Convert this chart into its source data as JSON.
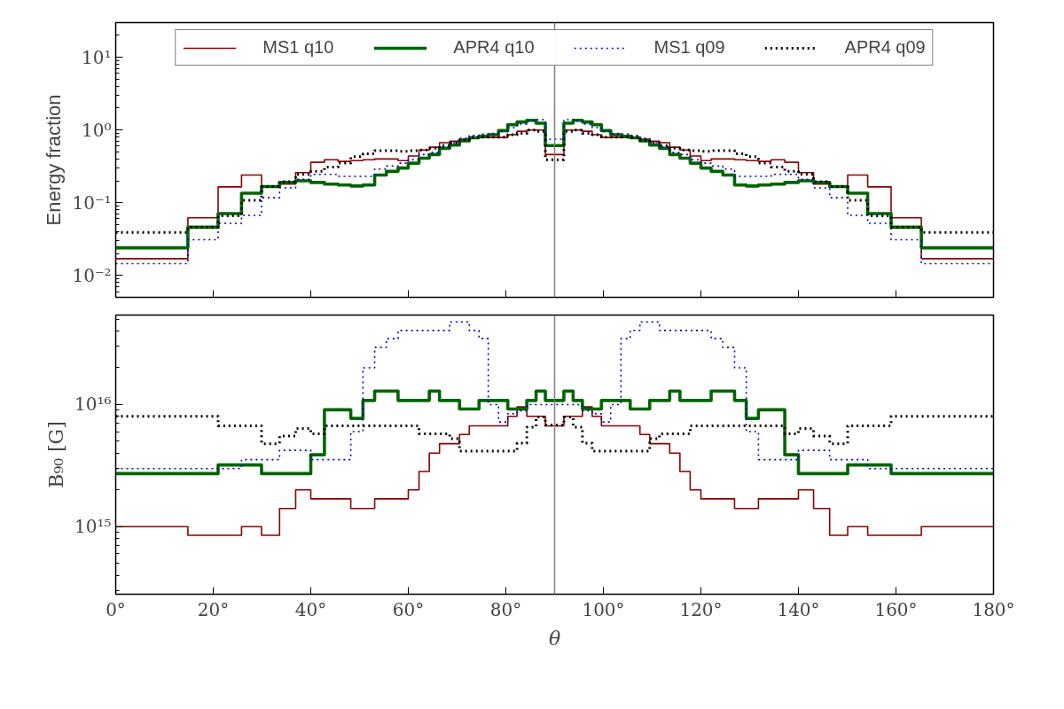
{
  "chart_data": [
    {
      "type": "step",
      "ylabel": "Energy fraction",
      "log": true,
      "legend": "top",
      "tick_labels": "y",
      "x": [
        0,
        14.8,
        21.0,
        25.8,
        29.9,
        33.6,
        36.9,
        40.0,
        42.8,
        45.6,
        48.2,
        50.7,
        53.1,
        55.5,
        57.9,
        60.0,
        62.2,
        64.3,
        66.4,
        68.5,
        70.5,
        72.5,
        74.5,
        76.4,
        78.5,
        80.4,
        82.3,
        84.3,
        86.2,
        88.1,
        90,
        91.9,
        93.8,
        95.7,
        97.7,
        99.6,
        101.5,
        103.6,
        105.5,
        107.5,
        109.5,
        111.5,
        113.6,
        115.7,
        117.8,
        120.0,
        122.1,
        124.5,
        126.9,
        129.3,
        131.8,
        134.4,
        137.2,
        140.0,
        143.1,
        146.4,
        150.1,
        154.2,
        159.0,
        165.2,
        180
      ],
      "xlim": [
        0,
        180
      ],
      "xticks": [
        0,
        20,
        40,
        60,
        80,
        100,
        120,
        140,
        160,
        180
      ],
      "ylim": [
        0.005,
        30
      ],
      "yticks": [
        {
          "value": 0.01,
          "label": "10⁻²"
        },
        {
          "value": 0.1,
          "label": "10⁻¹"
        },
        {
          "value": 1,
          "label": "10⁰"
        },
        {
          "value": 10,
          "label": "10¹"
        }
      ],
      "ref_lines": [
        {
          "axis": "x",
          "value": 90,
          "color": "#808080"
        }
      ],
      "series": [
        {
          "name": "MS1 q10",
          "color": "#8b0000",
          "line_style": "solid",
          "values": [
            0.017,
            0.062,
            0.165,
            0.24,
            0.17,
            0.18,
            0.26,
            0.36,
            0.39,
            0.37,
            0.38,
            0.39,
            0.4,
            0.4,
            0.38,
            0.44,
            0.53,
            0.58,
            0.67,
            0.7,
            0.75,
            0.79,
            0.79,
            0.79,
            0.79,
            0.86,
            0.96,
            1.0,
            1.0,
            0.46,
            0.46,
            1.0,
            1.0,
            0.96,
            0.86,
            0.79,
            0.79,
            0.79,
            0.79,
            0.75,
            0.7,
            0.67,
            0.58,
            0.53,
            0.44,
            0.38,
            0.4,
            0.4,
            0.39,
            0.38,
            0.37,
            0.39,
            0.36,
            0.26,
            0.18,
            0.17,
            0.24,
            0.165,
            0.062,
            0.017,
            0.017
          ]
        },
        {
          "name": "APR4 q10",
          "color": "#006400",
          "line_style": "solid",
          "values": [
            0.024,
            0.046,
            0.071,
            0.135,
            0.167,
            0.19,
            0.2,
            0.19,
            0.18,
            0.175,
            0.17,
            0.175,
            0.24,
            0.27,
            0.3,
            0.35,
            0.41,
            0.46,
            0.56,
            0.62,
            0.71,
            0.78,
            0.82,
            0.86,
            0.98,
            1.18,
            1.29,
            1.36,
            1.24,
            0.61,
            0.61,
            1.24,
            1.36,
            1.29,
            1.18,
            0.98,
            0.86,
            0.82,
            0.78,
            0.71,
            0.62,
            0.56,
            0.46,
            0.41,
            0.35,
            0.3,
            0.27,
            0.24,
            0.175,
            0.17,
            0.175,
            0.18,
            0.19,
            0.2,
            0.19,
            0.167,
            0.135,
            0.071,
            0.046,
            0.024,
            0.024
          ]
        },
        {
          "name": "MS1 q09",
          "color": "#0000cc",
          "line_style": "dotted",
          "values": [
            0.0145,
            0.031,
            0.052,
            0.067,
            0.117,
            0.16,
            0.21,
            0.245,
            0.245,
            0.23,
            0.23,
            0.23,
            0.29,
            0.32,
            0.35,
            0.39,
            0.46,
            0.49,
            0.58,
            0.67,
            0.77,
            0.84,
            0.88,
            0.9,
            0.95,
            1.08,
            1.21,
            1.33,
            1.39,
            0.75,
            0.75,
            1.39,
            1.33,
            1.21,
            1.08,
            0.95,
            0.9,
            0.88,
            0.84,
            0.77,
            0.67,
            0.58,
            0.49,
            0.46,
            0.39,
            0.35,
            0.32,
            0.29,
            0.23,
            0.23,
            0.23,
            0.245,
            0.245,
            0.21,
            0.16,
            0.117,
            0.067,
            0.052,
            0.031,
            0.0145,
            0.0145
          ]
        },
        {
          "name": "APR4 q09",
          "color": "#000000",
          "line_style": "dotted",
          "values": [
            0.039,
            0.046,
            0.066,
            0.108,
            0.167,
            0.195,
            0.245,
            0.27,
            0.31,
            0.35,
            0.43,
            0.47,
            0.52,
            0.52,
            0.51,
            0.52,
            0.53,
            0.56,
            0.61,
            0.67,
            0.73,
            0.79,
            0.8,
            0.8,
            0.8,
            0.86,
            0.9,
            1.0,
            0.96,
            0.39,
            0.39,
            0.96,
            1.0,
            0.9,
            0.86,
            0.8,
            0.8,
            0.8,
            0.79,
            0.73,
            0.67,
            0.61,
            0.56,
            0.53,
            0.52,
            0.51,
            0.52,
            0.52,
            0.47,
            0.43,
            0.35,
            0.31,
            0.27,
            0.245,
            0.195,
            0.167,
            0.108,
            0.066,
            0.046,
            0.039,
            0.039
          ]
        }
      ]
    },
    {
      "type": "step",
      "xlabel": "θ",
      "ylabel": "B₉₀ [G]",
      "log": true,
      "x": [
        0,
        14.8,
        21.0,
        25.8,
        29.9,
        33.6,
        36.9,
        40.0,
        42.8,
        45.6,
        48.2,
        50.7,
        53.1,
        55.5,
        57.9,
        60.0,
        62.2,
        64.3,
        66.4,
        68.5,
        70.5,
        72.5,
        74.5,
        76.4,
        78.5,
        80.4,
        82.3,
        84.3,
        86.2,
        88.1,
        90,
        91.9,
        93.8,
        95.7,
        97.7,
        99.6,
        101.5,
        103.6,
        105.5,
        107.5,
        109.5,
        111.5,
        113.6,
        115.7,
        117.8,
        120.0,
        122.1,
        124.5,
        126.9,
        129.3,
        131.8,
        134.4,
        137.2,
        140.0,
        143.1,
        146.4,
        150.1,
        154.2,
        159.0,
        165.2,
        180
      ],
      "xlim": [
        0,
        180
      ],
      "xticks": [
        {
          "value": 0,
          "label": "0°"
        },
        {
          "value": 20,
          "label": "20°"
        },
        {
          "value": 40,
          "label": "40°"
        },
        {
          "value": 60,
          "label": "60°"
        },
        {
          "value": 80,
          "label": "80°"
        },
        {
          "value": 100,
          "label": "100°"
        },
        {
          "value": 120,
          "label": "120°"
        },
        {
          "value": 140,
          "label": "140°"
        },
        {
          "value": 160,
          "label": "160°"
        },
        {
          "value": 180,
          "label": "180°"
        }
      ],
      "ylim": [
        280000000000000.0,
        5.4e+16
      ],
      "yticks": [
        {
          "value": 1000000000000000.0,
          "label": "10¹⁵"
        },
        {
          "value": 1e+16,
          "label": "10¹⁶"
        }
      ],
      "ref_lines": [
        {
          "axis": "x",
          "value": 90,
          "color": "#808080"
        }
      ],
      "series": [
        {
          "color": "#8b0000",
          "line_style": "solid",
          "values": [
            1000000000000000.0,
            850000000000000.0,
            850000000000000.0,
            1000000000000000.0,
            850000000000000.0,
            1410000000000000.0,
            2000000000000000.0,
            1690000000000000.0,
            1690000000000000.0,
            1690000000000000.0,
            1410000000000000.0,
            1410000000000000.0,
            1690000000000000.0,
            1690000000000000.0,
            1690000000000000.0,
            2000000000000000.0,
            2830000000000000.0,
            4000000000000000.0,
            4780000000000000.0,
            4780000000000000.0,
            5690000000000000.0,
            6700000000000000.0,
            6700000000000000.0,
            6700000000000000.0,
            6700000000000000.0,
            8000000000000000.0,
            9570000000000000.0,
            8000000000000000.0,
            8000000000000000.0,
            6700000000000000.0,
            6700000000000000.0,
            8000000000000000.0,
            8000000000000000.0,
            9570000000000000.0,
            8000000000000000.0,
            6700000000000000.0,
            6700000000000000.0,
            6700000000000000.0,
            6700000000000000.0,
            5690000000000000.0,
            4780000000000000.0,
            4780000000000000.0,
            4000000000000000.0,
            2830000000000000.0,
            2000000000000000.0,
            1690000000000000.0,
            1690000000000000.0,
            1690000000000000.0,
            1410000000000000.0,
            1410000000000000.0,
            1690000000000000.0,
            1690000000000000.0,
            1690000000000000.0,
            2000000000000000.0,
            1410000000000000.0,
            850000000000000.0,
            1000000000000000.0,
            850000000000000.0,
            850000000000000.0,
            1000000000000000.0,
            1000000000000000.0
          ]
        },
        {
          "color": "#006400",
          "line_style": "solid",
          "values": [
            2720000000000000.0,
            2720000000000000.0,
            3200000000000000.0,
            3200000000000000.0,
            2720000000000000.0,
            2720000000000000.0,
            2720000000000000.0,
            3880000000000000.0,
            9060000000000000.0,
            9060000000000000.0,
            7700000000000000.0,
            1.08e+16,
            1.29e+16,
            1.29e+16,
            1.08e+16,
            1.08e+16,
            1.08e+16,
            1.29e+16,
            1.08e+16,
            1.08e+16,
            9200000000000000.0,
            9200000000000000.0,
            1.08e+16,
            1.08e+16,
            1.08e+16,
            9200000000000000.0,
            9200000000000000.0,
            1.08e+16,
            1.29e+16,
            1.08e+16,
            1.08e+16,
            1.29e+16,
            1.08e+16,
            9200000000000000.0,
            9200000000000000.0,
            1.08e+16,
            1.08e+16,
            1.08e+16,
            9200000000000000.0,
            9200000000000000.0,
            1.08e+16,
            1.08e+16,
            1.29e+16,
            1.08e+16,
            1.08e+16,
            1.08e+16,
            1.29e+16,
            1.29e+16,
            1.08e+16,
            7700000000000000.0,
            9060000000000000.0,
            9060000000000000.0,
            3880000000000000.0,
            2720000000000000.0,
            2720000000000000.0,
            2720000000000000.0,
            3200000000000000.0,
            3200000000000000.0,
            2720000000000000.0,
            2720000000000000.0,
            2720000000000000.0
          ]
        },
        {
          "color": "#0000cc",
          "line_style": "dotted",
          "values": [
            2990000000000000.0,
            2990000000000000.0,
            2990000000000000.0,
            3540000000000000.0,
            3540000000000000.0,
            4220000000000000.0,
            4220000000000000.0,
            3540000000000000.0,
            3540000000000000.0,
            3540000000000000.0,
            6000000000000000.0,
            2e+16,
            2.94e+16,
            3.46e+16,
            4.04e+16,
            4.04e+16,
            4.04e+16,
            4.04e+16,
            4.04e+16,
            4.75e+16,
            4.75e+16,
            4.04e+16,
            3.46e+16,
            1e+16,
            7200000000000000.0,
            8400000000000000.0,
            8900000000000000.0,
            1e+16,
            1e+16,
            1e+16,
            1e+16,
            1e+16,
            1e+16,
            8900000000000000.0,
            8400000000000000.0,
            7200000000000000.0,
            1e+16,
            3.46e+16,
            4.04e+16,
            4.75e+16,
            4.75e+16,
            4.04e+16,
            4.04e+16,
            4.04e+16,
            4.04e+16,
            4.04e+16,
            3.46e+16,
            2.94e+16,
            2e+16,
            6000000000000000.0,
            3540000000000000.0,
            3540000000000000.0,
            3540000000000000.0,
            4220000000000000.0,
            4220000000000000.0,
            3540000000000000.0,
            3540000000000000.0,
            2990000000000000.0,
            2990000000000000.0,
            2990000000000000.0,
            2990000000000000.0
          ]
        },
        {
          "color": "#000000",
          "line_style": "dotted",
          "values": [
            8000000000000000.0,
            8000000000000000.0,
            6700000000000000.0,
            6700000000000000.0,
            4780000000000000.0,
            5530000000000000.0,
            6360000000000000.0,
            5750000000000000.0,
            6700000000000000.0,
            6700000000000000.0,
            6700000000000000.0,
            6700000000000000.0,
            6700000000000000.0,
            6700000000000000.0,
            6700000000000000.0,
            6700000000000000.0,
            5750000000000000.0,
            5750000000000000.0,
            5750000000000000.0,
            5250000000000000.0,
            4150000000000000.0,
            4150000000000000.0,
            4150000000000000.0,
            4150000000000000.0,
            4150000000000000.0,
            4150000000000000.0,
            4830000000000000.0,
            6530000000000000.0,
            7900000000000000.0,
            6780000000000000.0,
            6780000000000000.0,
            7900000000000000.0,
            6530000000000000.0,
            4830000000000000.0,
            4150000000000000.0,
            4150000000000000.0,
            4150000000000000.0,
            4150000000000000.0,
            4150000000000000.0,
            4150000000000000.0,
            5250000000000000.0,
            5750000000000000.0,
            5750000000000000.0,
            5750000000000000.0,
            6700000000000000.0,
            6700000000000000.0,
            6700000000000000.0,
            6700000000000000.0,
            6700000000000000.0,
            6700000000000000.0,
            6700000000000000.0,
            6700000000000000.0,
            5750000000000000.0,
            6360000000000000.0,
            5530000000000000.0,
            4780000000000000.0,
            6700000000000000.0,
            6700000000000000.0,
            8000000000000000.0,
            8000000000000000.0,
            8000000000000000.0
          ]
        }
      ]
    }
  ]
}
